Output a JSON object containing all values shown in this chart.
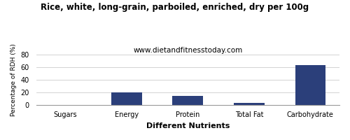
{
  "title": "Rice, white, long-grain, parboiled, enriched, dry per 100g",
  "subtitle": "www.dietandfitnesstoday.com",
  "categories": [
    "Sugars",
    "Energy",
    "Protein",
    "Total Fat",
    "Carbohydrate"
  ],
  "values": [
    0,
    20,
    14,
    3,
    63
  ],
  "bar_color": "#2b3f7a",
  "xlabel": "Different Nutrients",
  "ylabel": "Percentage of RDH (%)",
  "ylim": [
    0,
    80
  ],
  "yticks": [
    0,
    20,
    40,
    60,
    80
  ],
  "title_fontsize": 8.5,
  "subtitle_fontsize": 7.5,
  "xlabel_fontsize": 8,
  "ylabel_fontsize": 6.5,
  "tick_fontsize": 7,
  "background_color": "#ffffff"
}
